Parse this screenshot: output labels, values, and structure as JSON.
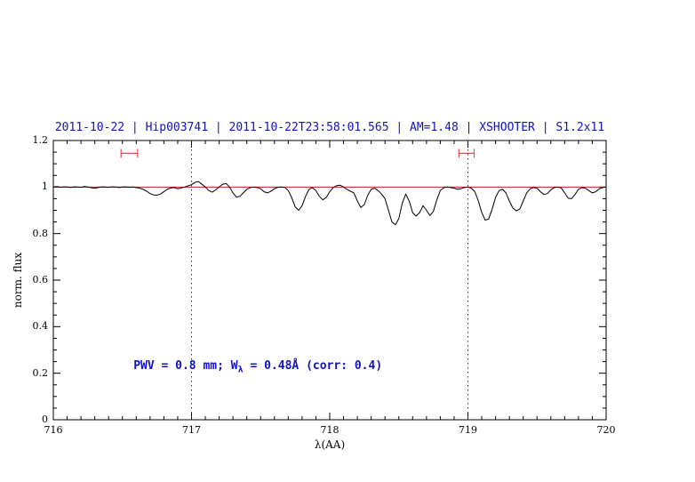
{
  "title": "2011-10-22 | Hip003741 | 2011-10-22T23:58:01.565 | AM=1.48 | XSHOOTER | S1.2x11",
  "colors": {
    "title": "#1111cc",
    "annotation": "#1111cc",
    "spectrum": "#000000",
    "continuum": "#cc2222",
    "marker": "#dd5555",
    "vline": "#333333",
    "frame": "#000000"
  },
  "annotation": {
    "prefix": "PWV = 0.8 mm; W",
    "sub": "λ",
    "suffix": " = 0.48Å (corr: 0.4)"
  },
  "axes": {
    "xlabel": "λ(AA)",
    "ylabel": "norm. flux",
    "xlim": [
      716,
      720
    ],
    "ylim": [
      0,
      1.2
    ],
    "x_minor_step": 0.1,
    "x_major_step": 1,
    "y_minor_step": 0.05,
    "y_major_step": 0.2,
    "xticks": [
      {
        "value": 716,
        "label": "716"
      },
      {
        "value": 717,
        "label": "717"
      },
      {
        "value": 718,
        "label": "718"
      },
      {
        "value": 719,
        "label": "719"
      },
      {
        "value": 720,
        "label": "720"
      }
    ],
    "yticks": [
      {
        "value": 0,
        "label": "0"
      },
      {
        "value": 0.2,
        "label": "0.2"
      },
      {
        "value": 0.4,
        "label": "0.4"
      },
      {
        "value": 0.6,
        "label": "0.6"
      },
      {
        "value": 0.8,
        "label": "0.8"
      },
      {
        "value": 1,
        "label": "1"
      },
      {
        "value": 1.2,
        "label": "1.2"
      }
    ]
  },
  "chart_data": {
    "type": "line",
    "title": "2011-10-22 | Hip003741 | 2011-10-22T23:58:01.565 | AM=1.48 | XSHOOTER | S1.2x11",
    "xlabel": "λ(AA)",
    "ylabel": "norm. flux",
    "xlim": [
      716,
      720
    ],
    "ylim": [
      0,
      1.2
    ],
    "grid": false,
    "series": [
      {
        "name": "spectrum",
        "color": "#000000",
        "x_start": 716,
        "x_step": 0.025,
        "y": [
          1.0,
          1.002,
          0.999,
          1.001,
          1.0,
          0.998,
          1.001,
          1.0,
          0.999,
          1.002,
          1.0,
          0.997,
          0.995,
          0.998,
          1.001,
          1.0,
          0.999,
          1.001,
          1.0,
          0.998,
          1.0,
          1.001,
          0.999,
          1.0,
          0.998,
          0.995,
          0.99,
          0.982,
          0.972,
          0.966,
          0.965,
          0.97,
          0.98,
          0.99,
          0.996,
          0.998,
          0.993,
          0.996,
          1.0,
          1.005,
          1.01,
          1.02,
          1.024,
          1.012,
          1.0,
          0.985,
          0.978,
          0.988,
          1.0,
          1.012,
          1.015,
          1.0,
          0.975,
          0.957,
          0.96,
          0.975,
          0.99,
          0.998,
          1.0,
          0.998,
          0.993,
          0.98,
          0.975,
          0.982,
          0.993,
          0.999,
          1.0,
          0.998,
          0.985,
          0.955,
          0.915,
          0.9,
          0.92,
          0.96,
          0.99,
          0.997,
          0.985,
          0.96,
          0.945,
          0.955,
          0.98,
          0.998,
          1.006,
          1.008,
          1.0,
          0.99,
          0.982,
          0.975,
          0.94,
          0.912,
          0.925,
          0.965,
          0.99,
          0.995,
          0.985,
          0.97,
          0.95,
          0.9,
          0.85,
          0.838,
          0.865,
          0.93,
          0.97,
          0.94,
          0.89,
          0.875,
          0.89,
          0.92,
          0.9,
          0.878,
          0.895,
          0.945,
          0.985,
          0.997,
          1.0,
          0.998,
          0.995,
          0.99,
          0.993,
          0.998,
          1.0,
          0.995,
          0.98,
          0.94,
          0.89,
          0.858,
          0.862,
          0.905,
          0.955,
          0.985,
          0.99,
          0.975,
          0.94,
          0.91,
          0.898,
          0.905,
          0.94,
          0.975,
          0.992,
          0.998,
          0.995,
          0.98,
          0.968,
          0.972,
          0.988,
          0.998,
          1.0,
          0.996,
          0.975,
          0.952,
          0.95,
          0.968,
          0.99,
          0.998,
          0.995,
          0.985,
          0.975,
          0.98,
          0.992,
          0.998,
          1.0
        ]
      },
      {
        "name": "continuum",
        "color": "#cc2222",
        "x": [
          716,
          720
        ],
        "y": [
          1.0,
          1.0
        ]
      }
    ],
    "vlines": [
      {
        "x": 717,
        "style": "dotted"
      },
      {
        "x": 719,
        "style": "dotted"
      }
    ],
    "markers": [
      {
        "type": "horizontal-errorbar",
        "x": 716.55,
        "xerr": 0.06,
        "y": 1.145
      },
      {
        "type": "horizontal-errorbar",
        "x": 718.99,
        "xerr": 0.055,
        "y": 1.145
      }
    ],
    "annotation": {
      "text": "PWV = 0.8 mm; Wλ = 0.48Å (corr: 0.4)",
      "x": 716.58,
      "y": 0.205
    }
  }
}
